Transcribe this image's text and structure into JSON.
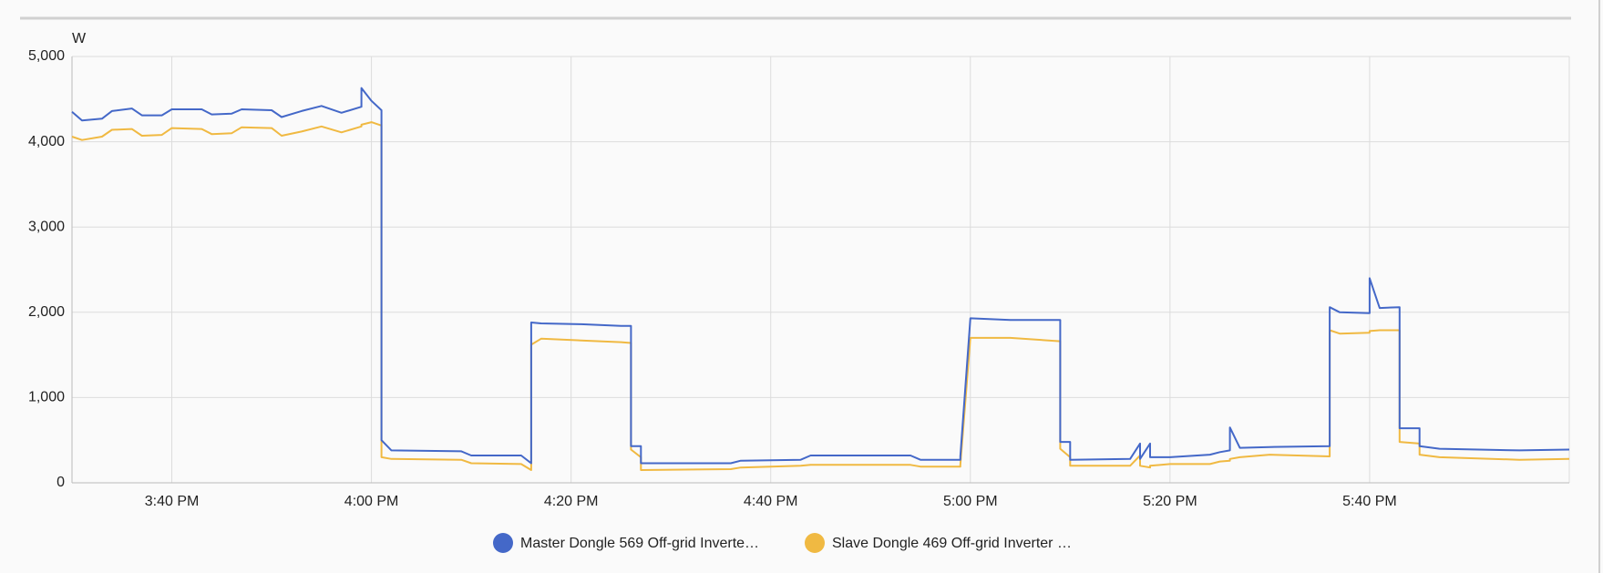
{
  "chart_data": {
    "type": "line",
    "y_unit": "W",
    "x": [
      "3:30 PM",
      "3:31 PM",
      "3:33 PM",
      "3:34 PM",
      "3:36 PM",
      "3:37 PM",
      "3:39 PM",
      "3:40 PM",
      "3:43 PM",
      "3:44 PM",
      "3:46 PM",
      "3:47 PM",
      "3:50 PM",
      "3:51 PM",
      "3:53 PM",
      "3:55 PM",
      "3:57 PM",
      "3:59 PM",
      "3:59 PM",
      "4:00 PM",
      "4:01 PM",
      "4:01 PM",
      "4:02 PM",
      "4:09 PM",
      "4:10 PM",
      "4:15 PM",
      "4:16 PM",
      "4:16 PM",
      "4:17 PM",
      "4:21 PM",
      "4:25 PM",
      "4:26 PM",
      "4:26 PM",
      "4:27 PM",
      "4:27 PM",
      "4:36 PM",
      "4:37 PM",
      "4:43 PM",
      "4:44 PM",
      "4:54 PM",
      "4:55 PM",
      "4:59 PM",
      "4:59 PM",
      "5:00 PM",
      "5:04 PM",
      "5:09 PM",
      "5:09 PM",
      "5:10 PM",
      "5:10 PM",
      "5:16 PM",
      "5:17 PM",
      "5:17 PM",
      "5:18 PM",
      "5:18 PM",
      "5:20 PM",
      "5:24 PM",
      "5:25 PM",
      "5:26 PM",
      "5:26 PM",
      "5:27 PM",
      "5:30 PM",
      "5:36 PM",
      "5:36 PM",
      "5:37 PM",
      "5:40 PM",
      "5:40 PM",
      "5:41 PM",
      "5:43 PM",
      "5:43 PM",
      "5:45 PM",
      "5:45 PM",
      "5:47 PM",
      "5:55 PM",
      "6:00 PM"
    ],
    "series": [
      {
        "name": "Master Dongle 569 Off-grid Inverte…",
        "color": "#4468c8",
        "values": [
          4350,
          4250,
          4270,
          4360,
          4390,
          4310,
          4310,
          4380,
          4380,
          4320,
          4330,
          4380,
          4370,
          4290,
          4360,
          4420,
          4340,
          4410,
          4630,
          4480,
          4370,
          500,
          380,
          370,
          320,
          320,
          230,
          1880,
          1870,
          1860,
          1840,
          1840,
          430,
          430,
          230,
          230,
          260,
          270,
          320,
          320,
          270,
          270,
          310,
          1930,
          1910,
          1910,
          480,
          480,
          270,
          280,
          460,
          280,
          460,
          300,
          300,
          330,
          360,
          380,
          650,
          410,
          420,
          430,
          2060,
          2000,
          1990,
          2400,
          2050,
          2060,
          640,
          640,
          430,
          400,
          380,
          390
        ]
      },
      {
        "name": "Slave Dongle 469 Off-grid Inverter …",
        "color": "#f0b942",
        "values": [
          4060,
          4020,
          4060,
          4140,
          4150,
          4070,
          4080,
          4160,
          4150,
          4090,
          4100,
          4170,
          4160,
          4070,
          4120,
          4180,
          4110,
          4180,
          4200,
          4230,
          4190,
          300,
          280,
          270,
          230,
          220,
          150,
          1620,
          1690,
          1670,
          1650,
          1640,
          390,
          300,
          150,
          160,
          180,
          200,
          210,
          210,
          190,
          190,
          210,
          1700,
          1700,
          1660,
          400,
          300,
          200,
          200,
          320,
          200,
          180,
          200,
          220,
          220,
          250,
          260,
          280,
          300,
          330,
          310,
          1790,
          1750,
          1760,
          1780,
          1790,
          1790,
          480,
          460,
          330,
          300,
          270,
          280
        ]
      }
    ],
    "xlim": [
      "3:30 PM",
      "6:00 PM"
    ],
    "xticks": [
      "3:40 PM",
      "4:00 PM",
      "4:20 PM",
      "4:40 PM",
      "5:00 PM",
      "5:20 PM",
      "5:40 PM"
    ],
    "ylim": [
      0,
      5000
    ],
    "yticks": [
      0,
      {
        "value": 1000,
        "label": "1,000"
      },
      {
        "value": 2000,
        "label": "2,000"
      },
      {
        "value": 3000,
        "label": "3,000"
      },
      {
        "value": 4000,
        "label": "4,000"
      },
      {
        "value": 5000,
        "label": "5,000"
      }
    ],
    "grid": true,
    "legend": "bottom"
  }
}
